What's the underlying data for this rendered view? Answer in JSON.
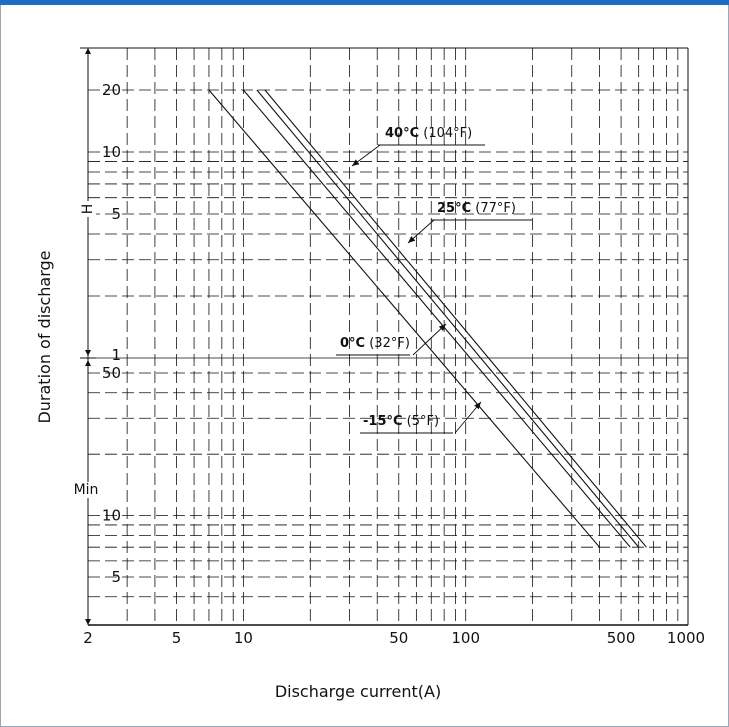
{
  "chart_data": {
    "type": "line",
    "xscale": "log",
    "yscale": "log",
    "xlim": [
      2,
      1000
    ],
    "xlabel": "Discharge current(A)",
    "ylabel": "Duration of discharge",
    "xticks": [
      {
        "value": 2,
        "label": "2"
      },
      {
        "value": 5,
        "label": "5"
      },
      {
        "value": 10,
        "label": "10"
      },
      {
        "value": 50,
        "label": "50"
      },
      {
        "value": 100,
        "label": "100"
      },
      {
        "value": 500,
        "label": "500"
      },
      {
        "value": 1000,
        "label": "1000"
      }
    ],
    "yticks": [
      {
        "label": "20",
        "unit": "H"
      },
      {
        "label": "10",
        "unit": "H"
      },
      {
        "label": "5",
        "unit": "H"
      },
      {
        "label": "1",
        "unit": "H"
      },
      {
        "label": "50",
        "unit": "Min"
      },
      {
        "label": "10",
        "unit": "Min"
      },
      {
        "label": "5",
        "unit": "Min"
      }
    ],
    "yunits": [
      {
        "label": "H",
        "range_minutes": [
          60,
          1200
        ]
      },
      {
        "label": "Min",
        "range_minutes": [
          3,
          60
        ]
      }
    ],
    "series": [
      {
        "name_bold": "40°C",
        "name_rest": " (104°F)",
        "x": [
          12.5,
          650
        ],
        "y_minutes": [
          1200,
          7
        ]
      },
      {
        "name_bold": "25°C",
        "name_rest": " (77°F)",
        "x": [
          11.5,
          600
        ],
        "y_minutes": [
          1200,
          7
        ]
      },
      {
        "name_bold": "0°C",
        "name_rest": " (32°F)",
        "x": [
          10,
          550
        ],
        "y_minutes": [
          1200,
          7
        ]
      },
      {
        "name_bold": "-15°C",
        "name_rest": " (5°F)",
        "x": [
          7,
          400
        ],
        "y_minutes": [
          1200,
          7
        ]
      }
    ],
    "grid": true,
    "colors": {
      "background": "#ffffff",
      "line": "#111111",
      "grid": "#111111",
      "accent_bar": "#1b6ec2"
    }
  }
}
